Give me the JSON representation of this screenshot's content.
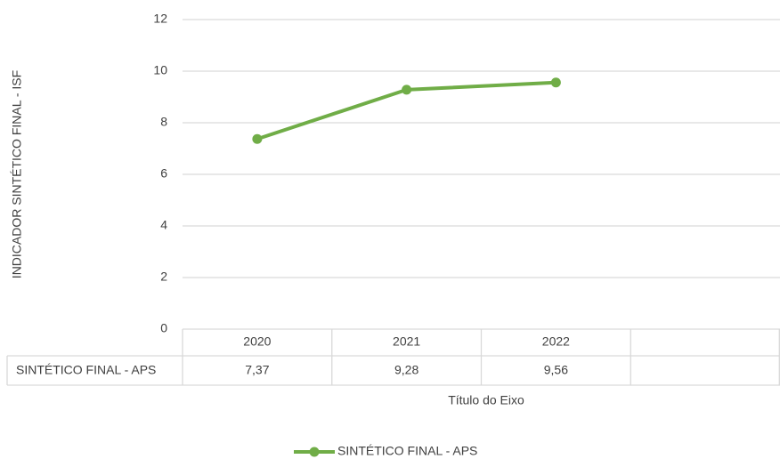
{
  "chart_data": {
    "type": "line",
    "y_axis_label": "INDICADOR SINTÉTICO FINAL - ISF",
    "x_axis_label": "Título do Eixo",
    "categories": [
      "2020",
      "2021",
      "2022",
      null
    ],
    "series": [
      {
        "name": "SINTÉTICO FINAL - APS",
        "color": "#70ad47",
        "values": [
          7.37,
          9.28,
          9.56,
          null
        ],
        "value_labels": [
          "7,37",
          "9,28",
          "9,56",
          null
        ]
      }
    ],
    "ylim": [
      0,
      12
    ],
    "yticks": [
      0,
      2,
      4,
      6,
      8,
      10,
      12
    ],
    "grid": true,
    "data_table": true,
    "legend": "bottom"
  }
}
